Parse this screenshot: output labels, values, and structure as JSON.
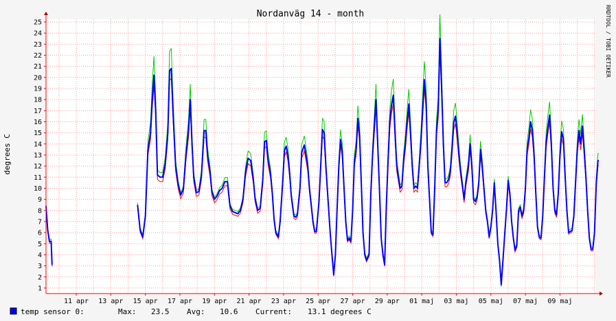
{
  "chart_data": {
    "type": "line",
    "title": "Nordanväg 14 - month",
    "ylabel": "degrees C",
    "watermark": "RRDTOOL / TOBI OETIKER",
    "ylim": [
      1,
      25
    ],
    "y_ticks": [
      "1",
      "2",
      "3",
      "4",
      "5",
      "6",
      "7",
      "8",
      "9",
      "10",
      "11",
      "12",
      "13",
      "14",
      "15",
      "16",
      "17",
      "18",
      "19",
      "20",
      "21",
      "22",
      "23",
      "24",
      "25"
    ],
    "xlim_days": [
      0,
      31.8
    ],
    "x_tick_labels": [
      "11 apr",
      "13 apr",
      "15 apr",
      "17 apr",
      "19 apr",
      "21 apr",
      "23 apr",
      "25 apr",
      "27 apr",
      "29 apr",
      "01 maj",
      "03 maj",
      "05 maj",
      "07 maj",
      "09 maj"
    ],
    "x_tick_days": [
      1.75,
      3.75,
      5.75,
      7.75,
      9.75,
      11.75,
      13.75,
      15.75,
      17.75,
      19.75,
      21.75,
      23.75,
      25.75,
      27.75,
      29.75
    ],
    "colors": {
      "avg": "#0000ff",
      "min": "#ff0000",
      "max": "#00cc00",
      "grid": "#ff9999",
      "legend_box": "#0000ff"
    },
    "series": [
      {
        "name": "temp sensor 0",
        "points": [
          [
            0.0,
            8.4
          ],
          [
            0.1,
            6.2
          ],
          [
            0.2,
            5.2
          ],
          [
            0.3,
            5.2
          ],
          [
            0.35,
            3.1
          ],
          null,
          [
            5.3,
            8.5
          ],
          [
            5.45,
            6.2
          ],
          [
            5.6,
            5.6
          ],
          [
            5.75,
            7.5
          ],
          [
            5.9,
            13.5
          ],
          [
            6.05,
            15.0
          ],
          [
            6.15,
            18.0
          ],
          [
            6.25,
            20.2
          ],
          [
            6.35,
            17.0
          ],
          [
            6.45,
            11.2
          ],
          [
            6.6,
            11.0
          ],
          [
            6.75,
            11.0
          ],
          [
            6.9,
            12.2
          ],
          [
            7.05,
            15.0
          ],
          [
            7.15,
            20.6
          ],
          [
            7.25,
            20.8
          ],
          [
            7.35,
            17.0
          ],
          [
            7.5,
            12.0
          ],
          [
            7.65,
            10.3
          ],
          [
            7.8,
            9.4
          ],
          [
            7.95,
            9.9
          ],
          [
            8.1,
            13.0
          ],
          [
            8.25,
            15.2
          ],
          [
            8.35,
            18.0
          ],
          [
            8.45,
            14.0
          ],
          [
            8.55,
            11.0
          ],
          [
            8.7,
            9.6
          ],
          [
            8.85,
            9.7
          ],
          [
            9.0,
            11.2
          ],
          [
            9.15,
            15.2
          ],
          [
            9.25,
            15.2
          ],
          [
            9.35,
            13.0
          ],
          [
            9.5,
            11.4
          ],
          [
            9.6,
            9.7
          ],
          [
            9.75,
            9.0
          ],
          [
            9.9,
            9.3
          ],
          [
            10.05,
            9.8
          ],
          [
            10.2,
            10.0
          ],
          [
            10.35,
            10.6
          ],
          [
            10.5,
            10.6
          ],
          [
            10.65,
            8.4
          ],
          [
            10.8,
            7.9
          ],
          [
            10.95,
            7.8
          ],
          [
            11.1,
            7.7
          ],
          [
            11.25,
            8.0
          ],
          [
            11.4,
            9.0
          ],
          [
            11.55,
            11.5
          ],
          [
            11.7,
            12.7
          ],
          [
            11.85,
            12.5
          ],
          [
            12.0,
            10.8
          ],
          [
            12.1,
            9.1
          ],
          [
            12.25,
            8.0
          ],
          [
            12.4,
            8.2
          ],
          [
            12.55,
            10.8
          ],
          [
            12.65,
            14.2
          ],
          [
            12.75,
            14.3
          ],
          [
            12.85,
            12.6
          ],
          [
            13.0,
            11.3
          ],
          [
            13.1,
            9.5
          ],
          [
            13.2,
            7.2
          ],
          [
            13.3,
            6.0
          ],
          [
            13.45,
            5.6
          ],
          [
            13.55,
            7.0
          ],
          [
            13.7,
            10.6
          ],
          [
            13.8,
            13.4
          ],
          [
            13.9,
            13.8
          ],
          [
            14.0,
            13.0
          ],
          [
            14.1,
            11.4
          ],
          [
            14.2,
            9.3
          ],
          [
            14.35,
            7.5
          ],
          [
            14.45,
            7.4
          ],
          [
            14.55,
            7.6
          ],
          [
            14.7,
            10.0
          ],
          [
            14.8,
            13.2
          ],
          [
            14.95,
            13.9
          ],
          [
            15.05,
            13.0
          ],
          [
            15.15,
            12.0
          ],
          [
            15.25,
            10.0
          ],
          [
            15.35,
            8.5
          ],
          [
            15.45,
            7.0
          ],
          [
            15.55,
            6.1
          ],
          [
            15.65,
            6.1
          ],
          [
            15.8,
            8.8
          ],
          [
            15.9,
            12.0
          ],
          [
            16.0,
            15.3
          ],
          [
            16.1,
            15.0
          ],
          [
            16.2,
            12.0
          ],
          [
            16.3,
            9.5
          ],
          [
            16.45,
            6.0
          ],
          [
            16.55,
            4.0
          ],
          [
            16.65,
            2.2
          ],
          [
            16.75,
            4.0
          ],
          [
            16.85,
            8.2
          ],
          [
            16.95,
            12.0
          ],
          [
            17.05,
            14.4
          ],
          [
            17.15,
            13.3
          ],
          [
            17.25,
            10.0
          ],
          [
            17.35,
            7.0
          ],
          [
            17.45,
            5.3
          ],
          [
            17.55,
            5.5
          ],
          [
            17.65,
            5.2
          ],
          [
            17.75,
            8.0
          ],
          [
            17.85,
            12.5
          ],
          [
            17.95,
            13.5
          ],
          [
            18.05,
            16.3
          ],
          [
            18.15,
            14.8
          ],
          [
            18.25,
            10.5
          ],
          [
            18.35,
            6.0
          ],
          [
            18.45,
            4.0
          ],
          [
            18.55,
            3.5
          ],
          [
            18.7,
            4.0
          ],
          [
            18.8,
            9.5
          ],
          [
            18.9,
            13.0
          ],
          [
            19.0,
            15.5
          ],
          [
            19.1,
            18.0
          ],
          [
            19.2,
            14.0
          ],
          [
            19.3,
            10.0
          ],
          [
            19.4,
            5.5
          ],
          [
            19.5,
            4.0
          ],
          [
            19.6,
            3.1
          ],
          [
            19.7,
            8.5
          ],
          [
            19.8,
            12.5
          ],
          [
            19.9,
            16.0
          ],
          [
            20.0,
            17.5
          ],
          [
            20.1,
            18.4
          ],
          [
            20.2,
            15.0
          ],
          [
            20.3,
            12.0
          ],
          [
            20.4,
            11.0
          ],
          [
            20.5,
            10.0
          ],
          [
            20.6,
            10.2
          ],
          [
            20.7,
            12.6
          ],
          [
            20.8,
            14.0
          ],
          [
            20.9,
            16.0
          ],
          [
            21.0,
            17.6
          ],
          [
            21.1,
            15.0
          ],
          [
            21.2,
            12.0
          ],
          [
            21.3,
            10.0
          ],
          [
            21.4,
            10.2
          ],
          [
            21.5,
            10.0
          ],
          [
            21.6,
            12.0
          ],
          [
            21.7,
            14.2
          ],
          [
            21.8,
            17.0
          ],
          [
            21.9,
            19.8
          ],
          [
            22.0,
            17.8
          ],
          [
            22.1,
            12.0
          ],
          [
            22.2,
            9.0
          ],
          [
            22.3,
            6.0
          ],
          [
            22.4,
            5.8
          ],
          [
            22.5,
            10.0
          ],
          [
            22.6,
            15.2
          ],
          [
            22.7,
            17.0
          ],
          [
            22.8,
            23.5
          ],
          [
            22.9,
            19.0
          ],
          [
            23.0,
            14.0
          ],
          [
            23.1,
            10.5
          ],
          [
            23.2,
            10.5
          ],
          [
            23.3,
            10.8
          ],
          [
            23.4,
            11.5
          ],
          [
            23.5,
            13.5
          ],
          [
            23.6,
            15.9
          ],
          [
            23.7,
            16.5
          ],
          [
            23.8,
            15.0
          ],
          [
            23.9,
            13.0
          ],
          [
            24.0,
            11.5
          ],
          [
            24.1,
            10.3
          ],
          [
            24.2,
            9.0
          ],
          [
            24.3,
            10.5
          ],
          [
            24.45,
            12.0
          ],
          [
            24.55,
            14.0
          ],
          [
            24.65,
            12.0
          ],
          [
            24.75,
            9.0
          ],
          [
            24.85,
            8.8
          ],
          [
            24.95,
            9.2
          ],
          [
            25.05,
            10.5
          ],
          [
            25.15,
            13.5
          ],
          [
            25.25,
            12.0
          ],
          [
            25.35,
            10.0
          ],
          [
            25.45,
            8.0
          ],
          [
            25.55,
            7.0
          ],
          [
            25.65,
            5.6
          ],
          [
            25.75,
            6.5
          ],
          [
            25.85,
            8.0
          ],
          [
            25.95,
            10.5
          ],
          [
            26.05,
            8.0
          ],
          [
            26.15,
            5.0
          ],
          [
            26.25,
            3.5
          ],
          [
            26.35,
            1.3
          ],
          [
            26.45,
            3.5
          ],
          [
            26.55,
            5.8
          ],
          [
            26.65,
            8.0
          ],
          [
            26.75,
            10.7
          ],
          [
            26.85,
            9.5
          ],
          [
            26.95,
            7.0
          ],
          [
            27.05,
            5.5
          ],
          [
            27.15,
            4.4
          ],
          [
            27.25,
            4.8
          ],
          [
            27.35,
            8.0
          ],
          [
            27.45,
            8.3
          ],
          [
            27.55,
            7.5
          ],
          [
            27.65,
            8.0
          ],
          [
            27.75,
            10.0
          ],
          [
            27.85,
            13.5
          ],
          [
            27.95,
            14.5
          ],
          [
            28.05,
            16.0
          ],
          [
            28.15,
            15.2
          ],
          [
            28.25,
            13.0
          ],
          [
            28.35,
            9.6
          ],
          [
            28.45,
            6.5
          ],
          [
            28.55,
            5.6
          ],
          [
            28.65,
            5.5
          ],
          [
            28.75,
            7.5
          ],
          [
            28.85,
            11.0
          ],
          [
            28.95,
            14.2
          ],
          [
            29.05,
            15.5
          ],
          [
            29.15,
            16.6
          ],
          [
            29.25,
            14.0
          ],
          [
            29.35,
            10.0
          ],
          [
            29.45,
            8.0
          ],
          [
            29.55,
            7.6
          ],
          [
            29.65,
            9.5
          ],
          [
            29.75,
            13.0
          ],
          [
            29.85,
            15.1
          ],
          [
            29.95,
            14.4
          ],
          [
            30.05,
            11.0
          ],
          [
            30.15,
            8.0
          ],
          [
            30.25,
            6.0
          ],
          [
            30.35,
            6.1
          ],
          [
            30.45,
            6.2
          ],
          [
            30.55,
            7.5
          ],
          [
            30.65,
            10.5
          ],
          [
            30.75,
            13.5
          ],
          [
            30.85,
            15.2
          ],
          [
            30.95,
            14.0
          ],
          [
            31.05,
            15.6
          ],
          [
            31.15,
            13.5
          ],
          [
            31.25,
            11.0
          ],
          [
            31.35,
            8.0
          ],
          [
            31.45,
            5.5
          ],
          [
            31.55,
            4.5
          ],
          [
            31.65,
            4.5
          ],
          [
            31.75,
            6.0
          ],
          [
            31.85,
            10.5
          ],
          [
            31.95,
            12.5
          ],
          [
            32.0,
            12.5
          ]
        ]
      }
    ]
  },
  "legend": {
    "label": "temp sensor 0:",
    "max_label": "Max:",
    "max_value": "23.5",
    "avg_label": "Avg:",
    "avg_value": "10.6",
    "current_label": "Current:",
    "current_value": "13.1 degrees C"
  }
}
